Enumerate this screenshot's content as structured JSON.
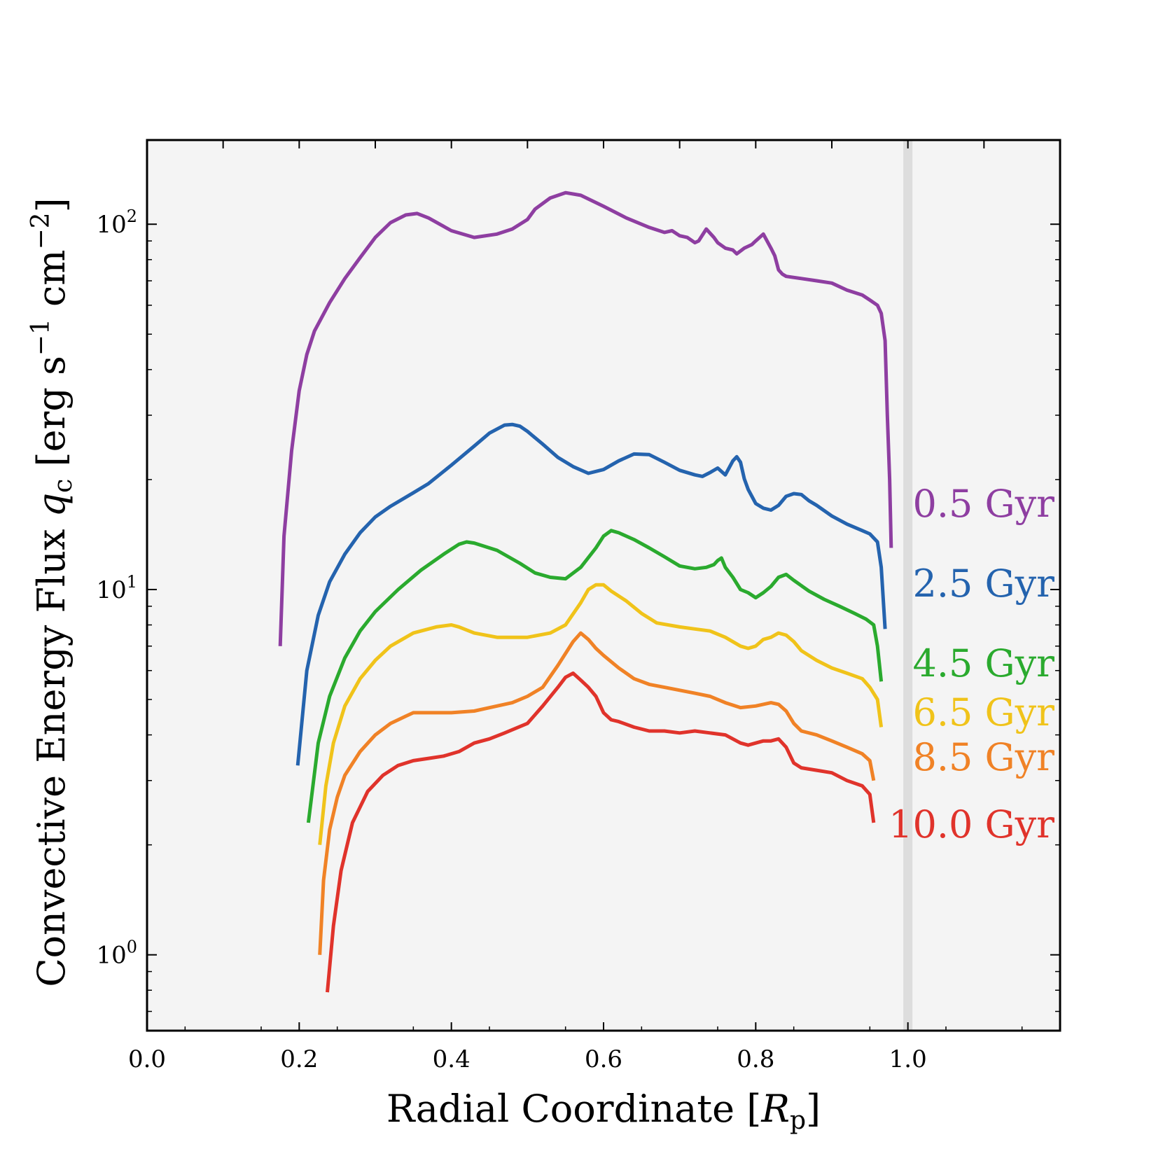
{
  "chart_data": {
    "type": "line",
    "xlabel": "Radial Coordinate [R_p]",
    "ylabel": "Convective Energy Flux q_c [erg s^-1 cm^-2]",
    "xlim": [
      0.0,
      1.2
    ],
    "ylim": [
      0.62,
      170
    ],
    "yscale": "log",
    "grid": false,
    "x_ticks": [
      "0.0",
      "0.2",
      "0.4",
      "0.6",
      "0.8",
      "1.0"
    ],
    "y_ticks": [
      {
        "base": "10",
        "exp": "0",
        "value": 1
      },
      {
        "base": "10",
        "exp": "1",
        "value": 10
      },
      {
        "base": "10",
        "exp": "2",
        "value": 100
      }
    ],
    "shaded_band": {
      "x_from": 0.994,
      "x_to": 1.006,
      "color": "#dddddd"
    },
    "background": "#f4f4f4",
    "series": [
      {
        "name": "0.5 Gyr",
        "color": "#8e3ea1",
        "x": [
          0.175,
          0.18,
          0.19,
          0.2,
          0.21,
          0.22,
          0.24,
          0.26,
          0.28,
          0.3,
          0.32,
          0.34,
          0.355,
          0.37,
          0.4,
          0.43,
          0.46,
          0.48,
          0.5,
          0.51,
          0.53,
          0.55,
          0.57,
          0.6,
          0.63,
          0.66,
          0.68,
          0.69,
          0.7,
          0.71,
          0.72,
          0.725,
          0.735,
          0.745,
          0.75,
          0.76,
          0.77,
          0.775,
          0.785,
          0.795,
          0.8,
          0.81,
          0.82,
          0.825,
          0.83,
          0.835,
          0.84,
          0.86,
          0.88,
          0.9,
          0.92,
          0.94,
          0.95,
          0.96,
          0.965,
          0.97,
          0.973,
          0.976,
          0.978
        ],
        "y": [
          7.0,
          14,
          24,
          35,
          44,
          51,
          61,
          71,
          81,
          92,
          101,
          106,
          107,
          104,
          96,
          92,
          94,
          97,
          103,
          110,
          118,
          122,
          120,
          112,
          104,
          98,
          95,
          96,
          93,
          92,
          89,
          90,
          97,
          92,
          89,
          86,
          85,
          83,
          86,
          88,
          90,
          94,
          86,
          82,
          75,
          73,
          72,
          71,
          70,
          69,
          66,
          64,
          62,
          60,
          57,
          48,
          30,
          20,
          13
        ]
      },
      {
        "name": "2.5 Gyr",
        "color": "#2463ae",
        "x": [
          0.198,
          0.21,
          0.225,
          0.24,
          0.26,
          0.28,
          0.3,
          0.32,
          0.35,
          0.37,
          0.4,
          0.43,
          0.45,
          0.47,
          0.48,
          0.49,
          0.5,
          0.52,
          0.54,
          0.56,
          0.58,
          0.6,
          0.62,
          0.64,
          0.66,
          0.68,
          0.7,
          0.72,
          0.73,
          0.74,
          0.75,
          0.76,
          0.77,
          0.775,
          0.78,
          0.785,
          0.79,
          0.8,
          0.81,
          0.82,
          0.83,
          0.84,
          0.85,
          0.86,
          0.87,
          0.88,
          0.9,
          0.92,
          0.94,
          0.95,
          0.96,
          0.965,
          0.97
        ],
        "y": [
          3.3,
          6.0,
          8.5,
          10.5,
          12.5,
          14.3,
          15.8,
          16.9,
          18.4,
          19.5,
          21.9,
          24.7,
          26.8,
          28.2,
          28.3,
          28.0,
          27.1,
          25.0,
          23.0,
          21.7,
          20.8,
          21.3,
          22.5,
          23.5,
          23.4,
          22.3,
          21.2,
          20.6,
          20.4,
          20.9,
          21.5,
          20.6,
          22.5,
          23.1,
          22.3,
          20.1,
          18.8,
          17.2,
          16.7,
          16.5,
          17.0,
          18.0,
          18.3,
          18.2,
          17.5,
          17.0,
          15.9,
          15.1,
          14.5,
          14.2,
          13.5,
          11.5,
          7.8
        ]
      },
      {
        "name": "4.5 Gyr",
        "color": "#2aaa2e",
        "x": [
          0.212,
          0.225,
          0.24,
          0.26,
          0.28,
          0.3,
          0.33,
          0.36,
          0.39,
          0.41,
          0.42,
          0.43,
          0.46,
          0.49,
          0.51,
          0.53,
          0.55,
          0.57,
          0.59,
          0.6,
          0.61,
          0.62,
          0.64,
          0.66,
          0.68,
          0.7,
          0.72,
          0.735,
          0.745,
          0.75,
          0.755,
          0.76,
          0.77,
          0.78,
          0.79,
          0.8,
          0.81,
          0.82,
          0.83,
          0.84,
          0.85,
          0.87,
          0.89,
          0.91,
          0.93,
          0.945,
          0.955,
          0.96,
          0.965
        ],
        "y": [
          2.3,
          3.8,
          5.1,
          6.5,
          7.7,
          8.7,
          10.0,
          11.3,
          12.5,
          13.3,
          13.5,
          13.4,
          12.8,
          11.8,
          11.1,
          10.8,
          10.7,
          11.5,
          13.0,
          14.0,
          14.5,
          14.3,
          13.7,
          13.0,
          12.3,
          11.6,
          11.4,
          11.5,
          11.7,
          12.0,
          12.2,
          11.5,
          10.8,
          10.0,
          9.8,
          9.5,
          9.8,
          10.2,
          10.8,
          11.0,
          10.6,
          9.9,
          9.4,
          9.0,
          8.6,
          8.3,
          8.0,
          7.0,
          5.6
        ]
      },
      {
        "name": "6.5 Gyr",
        "color": "#f0c31a",
        "x": [
          0.227,
          0.235,
          0.245,
          0.26,
          0.28,
          0.3,
          0.32,
          0.35,
          0.38,
          0.4,
          0.41,
          0.43,
          0.46,
          0.5,
          0.53,
          0.55,
          0.57,
          0.58,
          0.59,
          0.6,
          0.61,
          0.63,
          0.65,
          0.67,
          0.7,
          0.72,
          0.74,
          0.76,
          0.78,
          0.79,
          0.8,
          0.81,
          0.82,
          0.83,
          0.84,
          0.85,
          0.86,
          0.88,
          0.9,
          0.92,
          0.94,
          0.95,
          0.96,
          0.965
        ],
        "y": [
          2.0,
          2.9,
          3.8,
          4.8,
          5.7,
          6.4,
          7.0,
          7.6,
          7.9,
          8.0,
          7.9,
          7.6,
          7.4,
          7.4,
          7.6,
          8.0,
          9.2,
          10.0,
          10.3,
          10.3,
          9.9,
          9.3,
          8.6,
          8.1,
          7.9,
          7.8,
          7.7,
          7.4,
          7.0,
          6.9,
          7.0,
          7.3,
          7.4,
          7.6,
          7.5,
          7.2,
          6.8,
          6.4,
          6.1,
          5.9,
          5.7,
          5.4,
          5.0,
          4.2
        ]
      },
      {
        "name": "8.5 Gyr",
        "color": "#f08226",
        "x": [
          0.227,
          0.232,
          0.24,
          0.25,
          0.26,
          0.28,
          0.3,
          0.32,
          0.34,
          0.35,
          0.37,
          0.4,
          0.43,
          0.46,
          0.48,
          0.5,
          0.52,
          0.54,
          0.56,
          0.57,
          0.58,
          0.59,
          0.6,
          0.62,
          0.64,
          0.66,
          0.68,
          0.7,
          0.72,
          0.74,
          0.76,
          0.78,
          0.8,
          0.82,
          0.83,
          0.84,
          0.85,
          0.86,
          0.88,
          0.9,
          0.92,
          0.94,
          0.95,
          0.955
        ],
        "y": [
          1.0,
          1.6,
          2.2,
          2.7,
          3.1,
          3.6,
          4.0,
          4.3,
          4.5,
          4.6,
          4.6,
          4.6,
          4.65,
          4.8,
          4.9,
          5.1,
          5.4,
          6.2,
          7.2,
          7.6,
          7.3,
          6.9,
          6.6,
          6.1,
          5.7,
          5.5,
          5.4,
          5.3,
          5.2,
          5.1,
          4.9,
          4.75,
          4.8,
          4.9,
          4.85,
          4.65,
          4.3,
          4.1,
          4.0,
          3.85,
          3.7,
          3.55,
          3.4,
          3.0
        ]
      },
      {
        "name": "10.0 Gyr",
        "color": "#e0332b",
        "x": [
          0.237,
          0.245,
          0.255,
          0.27,
          0.29,
          0.31,
          0.33,
          0.35,
          0.37,
          0.39,
          0.41,
          0.43,
          0.45,
          0.47,
          0.5,
          0.52,
          0.54,
          0.55,
          0.56,
          0.57,
          0.58,
          0.59,
          0.6,
          0.61,
          0.62,
          0.64,
          0.66,
          0.68,
          0.7,
          0.72,
          0.74,
          0.76,
          0.78,
          0.79,
          0.8,
          0.81,
          0.82,
          0.83,
          0.84,
          0.85,
          0.86,
          0.88,
          0.9,
          0.92,
          0.94,
          0.95,
          0.955
        ],
        "y": [
          0.79,
          1.2,
          1.7,
          2.3,
          2.8,
          3.1,
          3.3,
          3.4,
          3.45,
          3.5,
          3.6,
          3.8,
          3.9,
          4.05,
          4.3,
          4.8,
          5.4,
          5.75,
          5.9,
          5.65,
          5.4,
          5.1,
          4.6,
          4.4,
          4.35,
          4.2,
          4.1,
          4.1,
          4.05,
          4.1,
          4.05,
          4.0,
          3.8,
          3.75,
          3.8,
          3.85,
          3.85,
          3.9,
          3.7,
          3.35,
          3.25,
          3.2,
          3.15,
          3.0,
          2.9,
          2.75,
          2.3
        ]
      }
    ]
  }
}
